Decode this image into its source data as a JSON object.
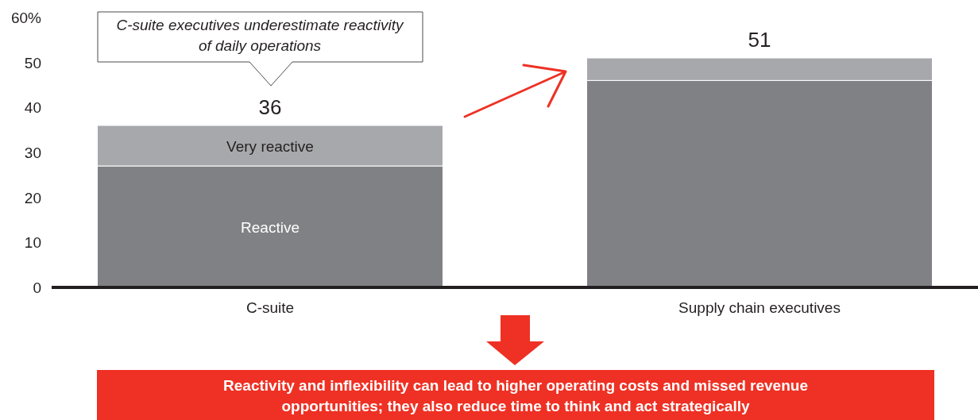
{
  "chart_data": {
    "type": "bar",
    "stacked": true,
    "categories": [
      "C-suite",
      "Supply chain executives"
    ],
    "series": [
      {
        "name": "Reactive",
        "color": "#808185",
        "values": [
          27,
          46
        ]
      },
      {
        "name": "Very reactive",
        "color": "#a7a8ac",
        "values": [
          9,
          5
        ]
      }
    ],
    "totals": [
      "36",
      "51"
    ],
    "ylim": [
      0,
      60
    ],
    "yticks": [
      0,
      10,
      20,
      30,
      40,
      50,
      {
        "value": 60,
        "label": "60%"
      }
    ],
    "annotations": [
      "C-suite executives underestimate reactivity of daily operations",
      "Reactivity and inflexibility can lead to higher operating costs and missed revenue opportunities; they also reduce time to think and act strategically"
    ]
  }
}
